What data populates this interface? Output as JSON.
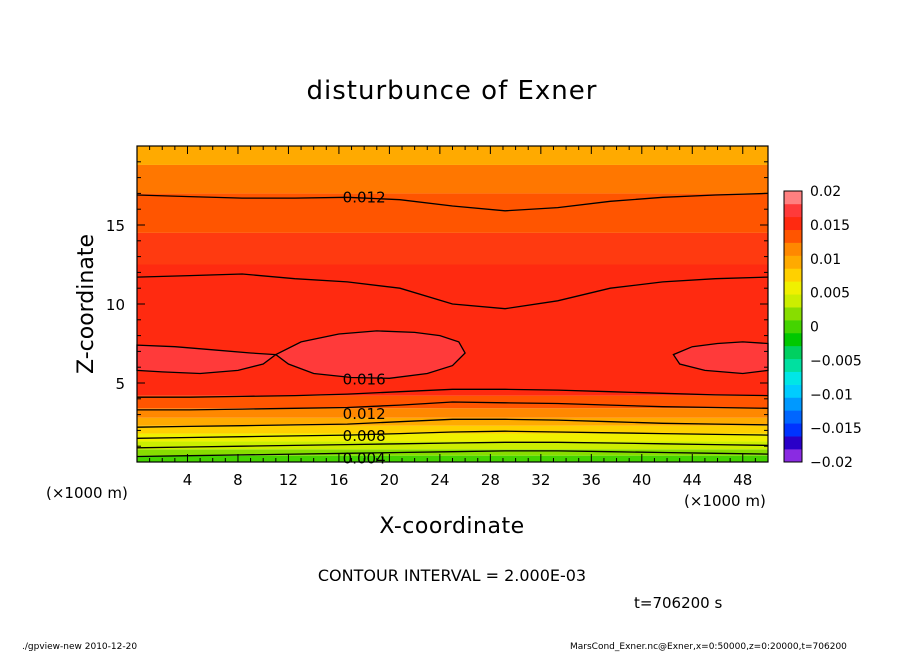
{
  "chart_data": {
    "type": "contour",
    "title": "disturbunce of Exner",
    "xlabel": "X-coordinate",
    "ylabel": "Z-coordinate",
    "x_unit_label": "(×1000 m)",
    "y_unit_label": "(×1000 m)",
    "xlim": [
      0,
      50
    ],
    "ylim": [
      0,
      20
    ],
    "x_ticks": [
      4,
      8,
      12,
      16,
      20,
      24,
      28,
      32,
      36,
      40,
      44,
      48
    ],
    "y_ticks": [
      5,
      10,
      15
    ],
    "contour_interval_text": "CONTOUR INTERVAL = 2.000E-03",
    "contour_labels": [
      {
        "value": "0.012",
        "x": 18,
        "z": 16.8
      },
      {
        "value": "0.016",
        "x": 18,
        "z": 5.3
      },
      {
        "value": "0.012",
        "x": 18,
        "z": 3.1
      },
      {
        "value": "0.008",
        "x": 18,
        "z": 1.7
      },
      {
        "value": "0.004",
        "x": 18,
        "z": 0.3
      }
    ],
    "colorbar": {
      "labels": [
        "0.02",
        "0.015",
        "0.01",
        "0.005",
        "0",
        "−0.005",
        "−0.01",
        "−0.015",
        "−0.02"
      ],
      "levels": [
        -0.02,
        -0.018,
        -0.016,
        -0.014,
        -0.012,
        -0.01,
        -0.008,
        -0.006,
        -0.004,
        -0.002,
        0,
        0.002,
        0.004,
        0.006,
        0.008,
        0.01,
        0.012,
        0.014,
        0.016,
        0.018,
        0.02
      ],
      "colors": [
        "#8a2be2",
        "#2a00c8",
        "#0033ff",
        "#0066ff",
        "#0099ff",
        "#00ccff",
        "#00e6e6",
        "#00e0a0",
        "#00d060",
        "#00c800",
        "#44d400",
        "#88dd00",
        "#ccee00",
        "#f0f000",
        "#ffd000",
        "#ffaa00",
        "#ff8800",
        "#ff5500",
        "#ff2a10",
        "#ff3a3a",
        "#ff8080"
      ]
    },
    "bands": [
      {
        "from": 0.0,
        "to": 0.4,
        "color": "#44d400"
      },
      {
        "from": 0.4,
        "to": 0.8,
        "color": "#88dd00"
      },
      {
        "from": 0.8,
        "to": 1.3,
        "color": "#ccee00"
      },
      {
        "from": 1.3,
        "to": 1.8,
        "color": "#f0f000"
      },
      {
        "from": 1.8,
        "to": 2.3,
        "color": "#ffd000"
      },
      {
        "from": 2.3,
        "to": 2.8,
        "color": "#ffaa00"
      },
      {
        "from": 2.8,
        "to": 3.4,
        "color": "#ff8800"
      },
      {
        "from": 3.4,
        "to": 4.2,
        "color": "#ff5500"
      },
      {
        "from": 4.2,
        "to": 12.5,
        "color": "#ff2a10"
      },
      {
        "from": 12.5,
        "to": 14.5,
        "color": "#ff3a10"
      },
      {
        "from": 14.5,
        "to": 17.0,
        "color": "#ff5500"
      },
      {
        "from": 17.0,
        "to": 18.8,
        "color": "#ff7700"
      },
      {
        "from": 18.8,
        "to": 20.0,
        "color": "#ffaa00"
      }
    ],
    "contour_lines": [
      {
        "value": 0.004,
        "z": [
          0.35,
          0.4,
          0.45,
          0.5,
          0.55,
          0.6,
          0.65,
          0.7,
          0.7,
          0.65,
          0.6,
          0.55,
          0.5
        ]
      },
      {
        "value": 0.006,
        "z": [
          0.9,
          0.95,
          1.0,
          1.05,
          1.1,
          1.15,
          1.2,
          1.25,
          1.25,
          1.2,
          1.15,
          1.1,
          1.05
        ]
      },
      {
        "value": 0.008,
        "z": [
          1.5,
          1.55,
          1.6,
          1.65,
          1.7,
          1.8,
          1.9,
          1.95,
          1.9,
          1.85,
          1.8,
          1.75,
          1.7
        ]
      },
      {
        "value": 0.01,
        "z": [
          2.2,
          2.25,
          2.3,
          2.35,
          2.4,
          2.55,
          2.7,
          2.7,
          2.65,
          2.55,
          2.45,
          2.4,
          2.35
        ]
      },
      {
        "value": 0.012,
        "z": [
          3.3,
          3.3,
          3.35,
          3.4,
          3.45,
          3.6,
          3.8,
          3.75,
          3.7,
          3.6,
          3.5,
          3.45,
          3.4
        ]
      },
      {
        "value": 0.014,
        "z": [
          4.1,
          4.1,
          4.15,
          4.2,
          4.3,
          4.45,
          4.6,
          4.6,
          4.55,
          4.45,
          4.35,
          4.25,
          4.2
        ]
      },
      {
        "value": 0.014,
        "z": [
          11.7,
          11.8,
          11.9,
          11.6,
          11.4,
          11.0,
          10.0,
          9.7,
          10.2,
          11.0,
          11.4,
          11.6,
          11.7
        ]
      },
      {
        "value": 0.012,
        "z": [
          16.9,
          16.8,
          16.7,
          16.7,
          16.75,
          16.6,
          16.2,
          15.9,
          16.1,
          16.5,
          16.75,
          16.9,
          17.0
        ]
      }
    ],
    "contour_islands": [
      {
        "value": 0.016,
        "points": [
          [
            0,
            7.4
          ],
          [
            3,
            7.3
          ],
          [
            6,
            7.1
          ],
          [
            9,
            6.9
          ],
          [
            11,
            6.8
          ],
          [
            13,
            7.6
          ],
          [
            16,
            8.1
          ],
          [
            19,
            8.3
          ],
          [
            22,
            8.2
          ],
          [
            24,
            8.0
          ],
          [
            25.5,
            7.6
          ],
          [
            26,
            6.9
          ],
          [
            25,
            6.1
          ],
          [
            23,
            5.6
          ],
          [
            20,
            5.3
          ],
          [
            17,
            5.35
          ],
          [
            14,
            5.6
          ],
          [
            12,
            6.2
          ],
          [
            11,
            6.8
          ],
          [
            10,
            6.2
          ],
          [
            8,
            5.8
          ],
          [
            5,
            5.6
          ],
          [
            2,
            5.7
          ],
          [
            0,
            5.8
          ]
        ]
      },
      {
        "value": 0.016,
        "points": [
          [
            50,
            7.5
          ],
          [
            48,
            7.6
          ],
          [
            46,
            7.5
          ],
          [
            44,
            7.3
          ],
          [
            42.5,
            6.8
          ],
          [
            43,
            6.2
          ],
          [
            45,
            5.8
          ],
          [
            48,
            5.6
          ],
          [
            50,
            5.8
          ]
        ]
      }
    ]
  },
  "footer": {
    "left": "./gpview-new  2010-12-20",
    "right": "MarsCond_Exner.nc@Exner,x=0:50000,z=0:20000,t=706200"
  },
  "time_label": "t=706200 s"
}
